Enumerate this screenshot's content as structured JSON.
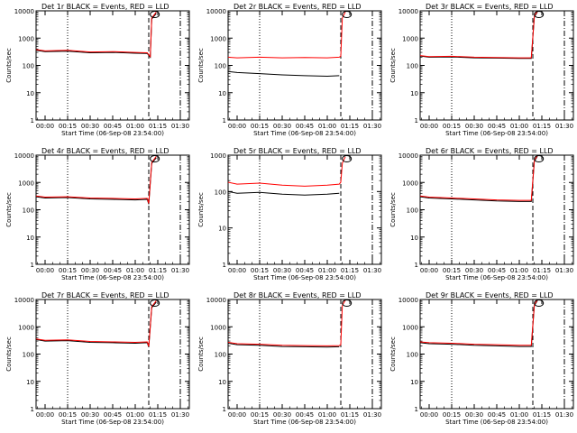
{
  "figure": {
    "xlabel": "Start Time (06-Sep-08 23:54:00)",
    "ylabel": "Counts/sec",
    "x_tick_labels": [
      "00:00",
      "00:15",
      "00:30",
      "00:45",
      "01:00",
      "01:15",
      "01:30"
    ],
    "y_tick_labels": [
      "1",
      "10",
      "100",
      "1000",
      "10000"
    ],
    "colors": {
      "events": "#000000",
      "lld": "#ff0000",
      "background": "#ffffff"
    }
  },
  "chart_data": [
    {
      "type": "line",
      "title": "Det 1r BLACK = Events, RED = LLD",
      "xlabel": "Start Time (06-Sep-08 23:54:00)",
      "ylabel": "Counts/sec",
      "x_unit": "minutes after 00:00",
      "xlim": [
        -6,
        96
      ],
      "ylim": [
        1,
        10000
      ],
      "yscale": "log",
      "series": [
        {
          "name": "Events",
          "color": "#000000",
          "x": [
            -6,
            0,
            15,
            30,
            45,
            60,
            68,
            70,
            71,
            74
          ],
          "y": [
            360,
            320,
            330,
            290,
            300,
            280,
            275,
            200,
            5000,
            8000
          ]
        },
        {
          "name": "LLD",
          "color": "#ff0000",
          "x": [
            -6,
            0,
            15,
            30,
            45,
            60,
            68,
            70,
            71,
            74
          ],
          "y": [
            380,
            340,
            360,
            310,
            320,
            300,
            290,
            210,
            5500,
            9000
          ]
        }
      ],
      "vlines": [
        {
          "x": 15,
          "style": "dotted"
        },
        {
          "x": 69,
          "style": "dashed"
        },
        {
          "x": 90,
          "style": "dash-dot"
        }
      ],
      "annotations": [
        {
          "x": 73,
          "y": 10000,
          "shape": "ellipse"
        }
      ]
    },
    {
      "type": "line",
      "title": "Det 2r BLACK = Events, RED = LLD",
      "xlabel": "Start Time (06-Sep-08 23:54:00)",
      "ylabel": "Counts/sec",
      "x_unit": "minutes after 00:00",
      "xlim": [
        -6,
        96
      ],
      "ylim": [
        1,
        10000
      ],
      "yscale": "log",
      "series": [
        {
          "name": "Events",
          "color": "#000000",
          "x": [
            -6,
            0,
            15,
            30,
            45,
            60,
            68
          ],
          "y": [
            60,
            55,
            50,
            45,
            42,
            40,
            42
          ]
        },
        {
          "name": "LLD",
          "color": "#ff0000",
          "x": [
            -6,
            0,
            15,
            30,
            45,
            60,
            68,
            69,
            70,
            72
          ],
          "y": [
            200,
            190,
            200,
            190,
            195,
            190,
            200,
            220,
            5500,
            9000
          ]
        }
      ],
      "vlines": [
        {
          "x": 15,
          "style": "dotted"
        },
        {
          "x": 69,
          "style": "dashed"
        },
        {
          "x": 90,
          "style": "dash-dot"
        }
      ],
      "annotations": [
        {
          "x": 73,
          "y": 10000,
          "shape": "ellipse"
        }
      ]
    },
    {
      "type": "line",
      "title": "Det 3r BLACK = Events, RED = LLD",
      "xlabel": "Start Time (06-Sep-08 23:54:00)",
      "ylabel": "Counts/sec",
      "x_unit": "minutes after 00:00",
      "xlim": [
        -6,
        96
      ],
      "ylim": [
        1,
        10000
      ],
      "yscale": "log",
      "series": [
        {
          "name": "Events",
          "color": "#000000",
          "x": [
            -6,
            0,
            15,
            30,
            45,
            60,
            68,
            70,
            72
          ],
          "y": [
            220,
            200,
            205,
            190,
            185,
            180,
            180,
            6000,
            9000
          ]
        },
        {
          "name": "LLD",
          "color": "#ff0000",
          "x": [
            -6,
            0,
            15,
            30,
            45,
            60,
            68,
            70,
            72
          ],
          "y": [
            230,
            210,
            215,
            200,
            195,
            190,
            190,
            6500,
            9500
          ]
        }
      ],
      "vlines": [
        {
          "x": 15,
          "style": "dotted"
        },
        {
          "x": 69,
          "style": "dashed"
        },
        {
          "x": 90,
          "style": "dash-dot"
        }
      ],
      "annotations": [
        {
          "x": 73,
          "y": 10000,
          "shape": "ellipse"
        }
      ]
    },
    {
      "type": "line",
      "title": "Det 4r BLACK = Events, RED = LLD",
      "xlabel": "Start Time (06-Sep-08 23:54:00)",
      "ylabel": "Counts/sec",
      "x_unit": "minutes after 00:00",
      "xlim": [
        -6,
        96
      ],
      "ylim": [
        1,
        10000
      ],
      "yscale": "log",
      "series": [
        {
          "name": "Events",
          "color": "#000000",
          "x": [
            -6,
            0,
            15,
            30,
            45,
            60,
            68,
            69,
            71,
            74
          ],
          "y": [
            300,
            270,
            280,
            250,
            240,
            230,
            240,
            160,
            5000,
            8000
          ]
        },
        {
          "name": "LLD",
          "color": "#ff0000",
          "x": [
            -6,
            0,
            15,
            30,
            45,
            60,
            68,
            69,
            71,
            74
          ],
          "y": [
            320,
            290,
            300,
            270,
            260,
            250,
            260,
            170,
            5500,
            9000
          ]
        }
      ],
      "vlines": [
        {
          "x": 15,
          "style": "dotted"
        },
        {
          "x": 69,
          "style": "dashed"
        },
        {
          "x": 90,
          "style": "dash-dot"
        }
      ],
      "annotations": [
        {
          "x": 73,
          "y": 10000,
          "shape": "ellipse"
        }
      ]
    },
    {
      "type": "line",
      "title": "Det 5r BLACK = Events, RED = LLD",
      "xlabel": "Start Time (06-Sep-08 23:54:00)",
      "ylabel": "Counts/sec",
      "x_unit": "minutes after 00:00",
      "xlim": [
        -6,
        96
      ],
      "ylim": [
        1,
        1000
      ],
      "yscale": "log",
      "series": [
        {
          "name": "Events",
          "color": "#000000",
          "x": [
            -6,
            0,
            15,
            30,
            45,
            60,
            68
          ],
          "y": [
            100,
            90,
            95,
            85,
            80,
            85,
            90
          ]
        },
        {
          "name": "LLD",
          "color": "#ff0000",
          "x": [
            -6,
            0,
            15,
            30,
            45,
            60,
            68,
            69,
            70,
            72
          ],
          "y": [
            180,
            160,
            170,
            150,
            140,
            150,
            160,
            180,
            600,
            900
          ]
        }
      ],
      "vlines": [
        {
          "x": 15,
          "style": "dotted"
        },
        {
          "x": 69,
          "style": "dashed"
        },
        {
          "x": 90,
          "style": "dash-dot"
        }
      ],
      "annotations": [
        {
          "x": 73,
          "y": 1000,
          "shape": "ellipse"
        }
      ]
    },
    {
      "type": "line",
      "title": "Det 6r BLACK = Events, RED = LLD",
      "xlabel": "Start Time (06-Sep-08 23:54:00)",
      "ylabel": "Counts/sec",
      "x_unit": "minutes after 00:00",
      "xlim": [
        -6,
        96
      ],
      "ylim": [
        1,
        10000
      ],
      "yscale": "log",
      "series": [
        {
          "name": "Events",
          "color": "#000000",
          "x": [
            -6,
            0,
            15,
            30,
            45,
            60,
            68,
            70,
            72
          ],
          "y": [
            300,
            270,
            250,
            230,
            210,
            200,
            200,
            6000,
            9000
          ]
        },
        {
          "name": "LLD",
          "color": "#ff0000",
          "x": [
            -6,
            0,
            15,
            30,
            45,
            60,
            68,
            70,
            72
          ],
          "y": [
            320,
            290,
            270,
            250,
            230,
            220,
            220,
            6500,
            9500
          ]
        }
      ],
      "vlines": [
        {
          "x": 15,
          "style": "dotted"
        },
        {
          "x": 69,
          "style": "dashed"
        },
        {
          "x": 90,
          "style": "dash-dot"
        }
      ],
      "annotations": [
        {
          "x": 73,
          "y": 10000,
          "shape": "ellipse"
        }
      ]
    },
    {
      "type": "line",
      "title": "Det 7r BLACK = Events, RED = LLD",
      "xlabel": "Start Time (06-Sep-08 23:54:00)",
      "ylabel": "Counts/sec",
      "x_unit": "minutes after 00:00",
      "xlim": [
        -6,
        96
      ],
      "ylim": [
        1,
        10000
      ],
      "yscale": "log",
      "series": [
        {
          "name": "Events",
          "color": "#000000",
          "x": [
            -6,
            0,
            15,
            30,
            45,
            60,
            68,
            69,
            71,
            74
          ],
          "y": [
            340,
            300,
            310,
            270,
            260,
            250,
            260,
            180,
            5000,
            8000
          ]
        },
        {
          "name": "LLD",
          "color": "#ff0000",
          "x": [
            -6,
            0,
            15,
            30,
            45,
            60,
            68,
            69,
            71,
            74
          ],
          "y": [
            360,
            320,
            330,
            290,
            280,
            270,
            280,
            190,
            5500,
            9000
          ]
        }
      ],
      "vlines": [
        {
          "x": 15,
          "style": "dotted"
        },
        {
          "x": 69,
          "style": "dashed"
        },
        {
          "x": 90,
          "style": "dash-dot"
        }
      ],
      "annotations": [
        {
          "x": 73,
          "y": 10000,
          "shape": "ellipse"
        }
      ]
    },
    {
      "type": "line",
      "title": "Det 8r BLACK = Events, RED = LLD",
      "xlabel": "Start Time (06-Sep-08 23:54:00)",
      "ylabel": "Counts/sec",
      "x_unit": "minutes after 00:00",
      "xlim": [
        -6,
        96
      ],
      "ylim": [
        1,
        10000
      ],
      "yscale": "log",
      "series": [
        {
          "name": "Events",
          "color": "#000000",
          "x": [
            -6,
            0,
            15,
            30,
            45,
            60,
            68
          ],
          "y": [
            250,
            220,
            210,
            190,
            185,
            180,
            185
          ]
        },
        {
          "name": "LLD",
          "color": "#ff0000",
          "x": [
            -6,
            0,
            15,
            30,
            45,
            60,
            68,
            69,
            70,
            72
          ],
          "y": [
            270,
            240,
            230,
            210,
            205,
            200,
            205,
            220,
            6000,
            9500
          ]
        }
      ],
      "vlines": [
        {
          "x": 15,
          "style": "dotted"
        },
        {
          "x": 69,
          "style": "dashed"
        },
        {
          "x": 90,
          "style": "dash-dot"
        }
      ],
      "annotations": [
        {
          "x": 73,
          "y": 10000,
          "shape": "ellipse"
        }
      ]
    },
    {
      "type": "line",
      "title": "Det 9r BLACK = Events, RED = LLD",
      "xlabel": "Start Time (06-Sep-08 23:54:00)",
      "ylabel": "Counts/sec",
      "x_unit": "minutes after 00:00",
      "xlim": [
        -6,
        96
      ],
      "ylim": [
        1,
        10000
      ],
      "yscale": "log",
      "series": [
        {
          "name": "Events",
          "color": "#000000",
          "x": [
            -6,
            0,
            15,
            30,
            45,
            60,
            68,
            70,
            72
          ],
          "y": [
            260,
            240,
            230,
            210,
            200,
            190,
            190,
            6000,
            9000
          ]
        },
        {
          "name": "LLD",
          "color": "#ff0000",
          "x": [
            -6,
            0,
            15,
            30,
            45,
            60,
            68,
            70,
            72
          ],
          "y": [
            280,
            260,
            250,
            230,
            220,
            210,
            210,
            6500,
            9500
          ]
        }
      ],
      "vlines": [
        {
          "x": 15,
          "style": "dotted"
        },
        {
          "x": 69,
          "style": "dashed"
        },
        {
          "x": 90,
          "style": "dash-dot"
        }
      ],
      "annotations": [
        {
          "x": 73,
          "y": 10000,
          "shape": "ellipse"
        }
      ]
    }
  ]
}
